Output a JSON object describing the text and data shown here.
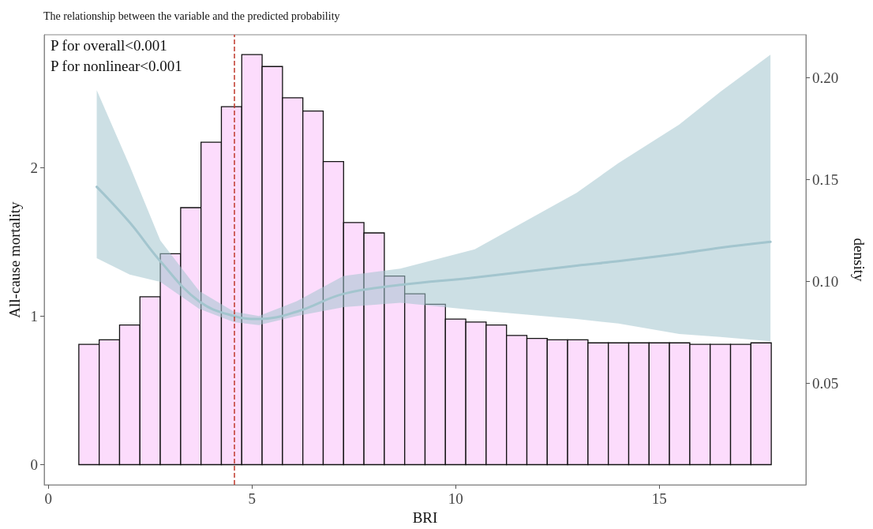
{
  "chart_data": {
    "type": "histogram",
    "title": "The relationship between the variable and the predicted probability",
    "xlabel": "BRI",
    "ylabel": "All-cause mortality",
    "y2label": "density",
    "annotations": [
      "P for overall<0.001",
      "P for nonlinear<0.001"
    ],
    "bins": [
      0.75,
      1.25,
      1.75,
      2.25,
      2.75,
      3.25,
      3.75,
      4.25,
      4.75,
      5.25,
      5.75,
      6.25,
      6.75,
      7.25,
      7.75,
      8.25,
      8.75,
      9.25,
      9.75,
      10.25,
      10.75,
      11.25,
      11.75,
      12.25,
      12.75,
      13.25,
      13.75,
      14.25,
      14.75,
      15.25,
      15.75,
      16.25,
      16.75,
      17.25,
      17.75
    ],
    "values": [
      0.81,
      0.84,
      0.94,
      1.13,
      1.42,
      1.73,
      2.17,
      2.41,
      2.76,
      2.68,
      2.47,
      2.38,
      2.04,
      1.63,
      1.56,
      1.27,
      1.15,
      1.08,
      0.98,
      0.96,
      0.94,
      0.87,
      0.85,
      0.84,
      0.84,
      0.82,
      0.82,
      0.82,
      0.82,
      0.82,
      0.81,
      0.81,
      0.81,
      0.82
    ],
    "color": "#fcdcfc",
    "series": [
      {
        "type": "line",
        "color": "#a3c5ce",
        "x": [
          1.19,
          2.0,
          2.75,
          3.7,
          4.56,
          5.17,
          6.1,
          7.25,
          8.64,
          10.47,
          12.97,
          14.0,
          15.49,
          16.5,
          17.73
        ],
        "values": [
          1.87,
          1.63,
          1.37,
          1.1,
          1.0,
          0.98,
          1.03,
          1.15,
          1.21,
          1.26,
          1.34,
          1.37,
          1.42,
          1.46,
          1.5
        ],
        "lower": [
          1.39,
          1.28,
          1.23,
          1.05,
          0.96,
          0.94,
          1.0,
          1.06,
          1.09,
          1.04,
          0.98,
          0.95,
          0.88,
          0.86,
          0.83
        ],
        "upper": [
          2.52,
          2.01,
          1.51,
          1.17,
          1.03,
          1.0,
          1.1,
          1.27,
          1.32,
          1.45,
          1.83,
          2.03,
          2.29,
          2.51,
          2.76
        ]
      }
    ],
    "xlim": [
      -0.1,
      18.6
    ],
    "xticks": [
      0,
      5,
      10,
      15
    ],
    "ylim": [
      -0.136,
      2.894
    ],
    "yticks": [
      0,
      1,
      2
    ],
    "y2lim": [
      0,
      0.221
    ],
    "y2ticks": [
      0.05,
      {
        "value": 0.1,
        "label": "0.10"
      },
      0.15,
      {
        "value": 0.2,
        "label": "0.20"
      }
    ],
    "ref_lines": [
      {
        "axis": "x",
        "value": 4.56,
        "color": "#c0392b",
        "line_style": "dashed"
      }
    ],
    "grid": false
  }
}
